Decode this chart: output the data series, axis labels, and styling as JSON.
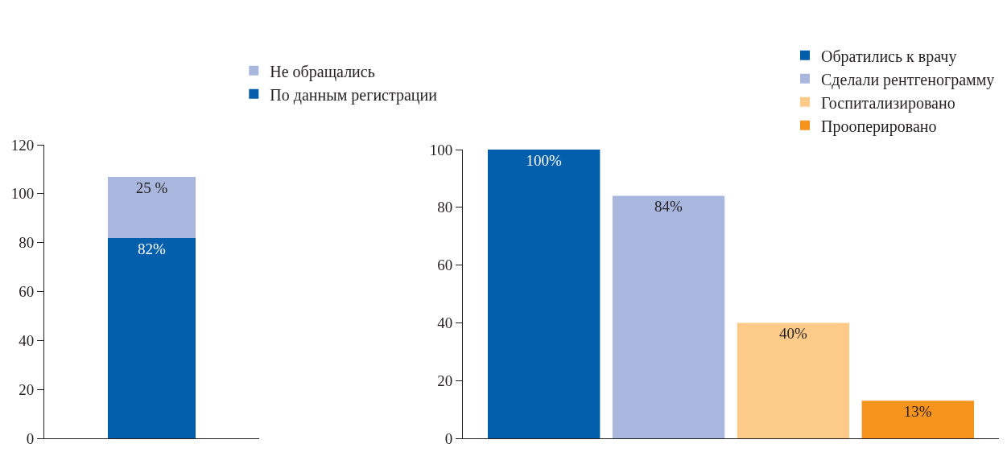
{
  "chart_data": [
    {
      "type": "bar",
      "stacked": true,
      "categories": [
        null
      ],
      "ylim": [
        0,
        120
      ],
      "yticks": [
        0,
        20,
        40,
        60,
        80,
        100,
        120
      ],
      "grid": false,
      "legend": "top",
      "series": [
        {
          "name": "По данным регистрации",
          "color": "#035eac",
          "values": [
            82
          ],
          "value_labels": [
            "82%"
          ]
        },
        {
          "name": "Не обращались",
          "color": "#a9b7df",
          "values": [
            25
          ],
          "value_labels": [
            "25 %"
          ]
        }
      ]
    },
    {
      "type": "bar",
      "categories": [
        null,
        null,
        null,
        null
      ],
      "ylim": [
        0,
        100
      ],
      "yticks": [
        0,
        20,
        40,
        60,
        80,
        100
      ],
      "grid": false,
      "legend": "top right",
      "series": [
        {
          "name": "Обратились к врачу",
          "color": "#035eac",
          "values": [
            100,
            null,
            null,
            null
          ],
          "value_labels": [
            "100%",
            null,
            null,
            null
          ]
        },
        {
          "name": "Сделали рентгенограмму",
          "color": "#a9b7df",
          "values": [
            null,
            84,
            null,
            null
          ],
          "value_labels": [
            null,
            "84%",
            null,
            null
          ]
        },
        {
          "name": "Госпитализировано",
          "color": "#fccb8a",
          "values": [
            null,
            null,
            40,
            null
          ],
          "value_labels": [
            null,
            null,
            "40%",
            null
          ]
        },
        {
          "name": "Прооперировано",
          "color": "#f7941e",
          "values": [
            null,
            null,
            null,
            13
          ],
          "value_labels": [
            null,
            null,
            null,
            "13%"
          ]
        }
      ]
    }
  ]
}
